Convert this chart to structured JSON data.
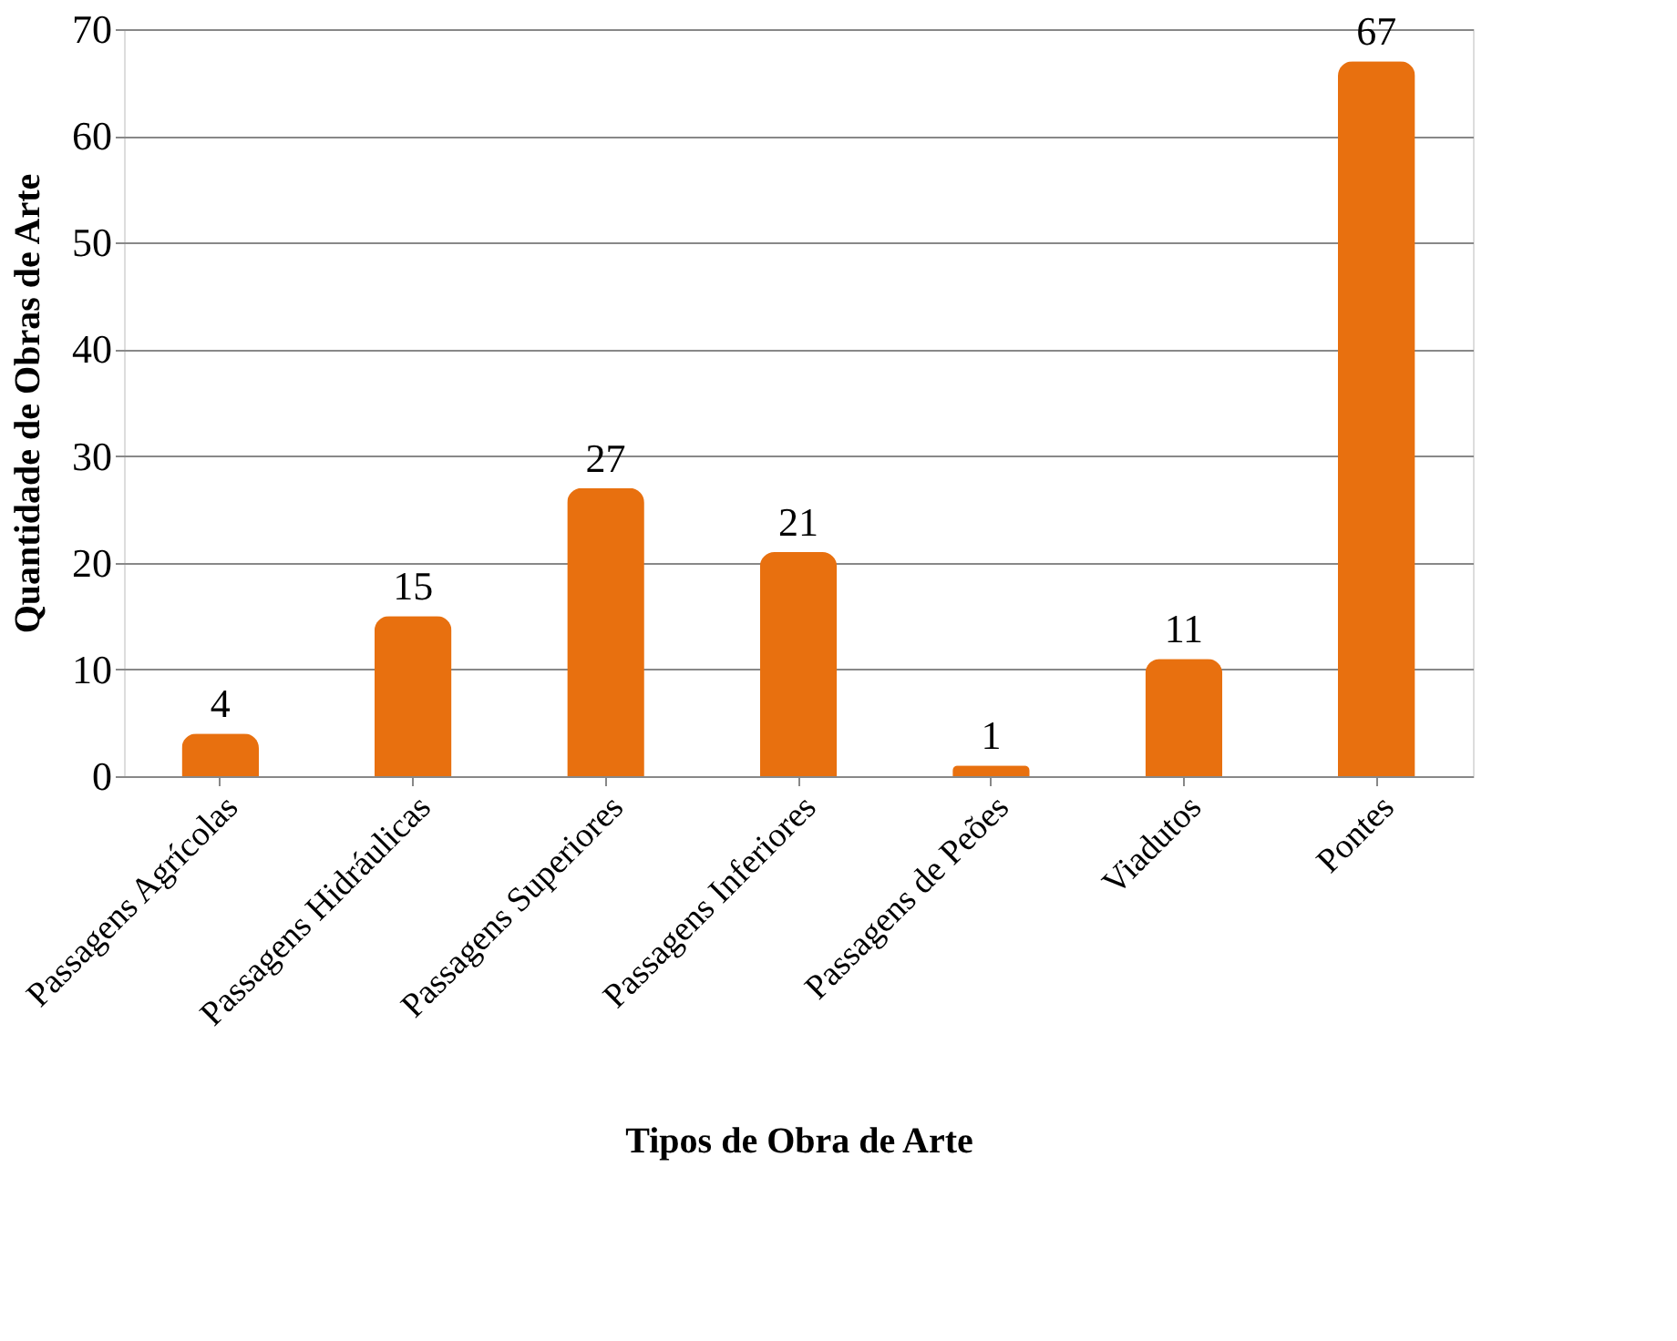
{
  "chart_data": {
    "type": "bar",
    "xlabel": "Tipos de Obra de Arte",
    "ylabel": "Quantidade de Obras de Arte",
    "categories": [
      "Passagens Agrícolas",
      "Passagens Hidráulicas",
      "Passagens Superiores",
      "Passagens Inferiores",
      "Passagens de Peões",
      "Viadutos",
      "Pontes"
    ],
    "values": [
      4,
      15,
      27,
      21,
      1,
      11,
      67
    ],
    "color": "#e8700f",
    "ylim": [
      0,
      70
    ],
    "yticks": [
      0,
      10,
      20,
      30,
      40,
      50,
      60,
      70
    ],
    "grid": "y",
    "data_labels": true
  }
}
